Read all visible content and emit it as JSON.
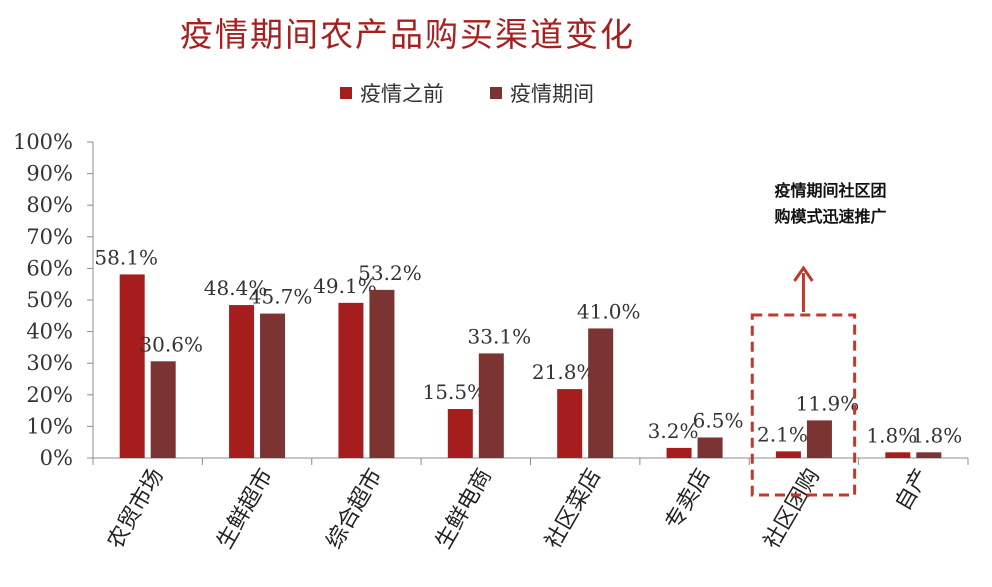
{
  "chart_data": {
    "type": "bar",
    "title": "疫情期间农产品购买渠道变化",
    "categories": [
      "农贸市场",
      "生鲜超市",
      "综合超市",
      "生鲜电商",
      "社区菜店",
      "专卖店",
      "社区团购",
      "自产"
    ],
    "series": [
      {
        "name": "疫情之前",
        "color": "#a61d1d",
        "values": [
          58.1,
          48.4,
          49.1,
          15.5,
          21.8,
          3.2,
          2.1,
          1.8
        ],
        "labels": [
          "58.1%",
          "48.4%",
          "49.1%",
          "15.5%",
          "21.8%",
          "3.2%",
          "2.1%",
          "1.8%"
        ]
      },
      {
        "name": "疫情期间",
        "color": "#7b3432",
        "values": [
          30.6,
          45.7,
          53.2,
          33.1,
          41.0,
          6.5,
          11.9,
          1.8
        ],
        "labels": [
          "30.6%",
          "45.7%",
          "53.2%",
          "33.1%",
          "41.0%",
          "6.5%",
          "11.9%",
          "1.8%"
        ]
      }
    ],
    "ylim": [
      0,
      100
    ],
    "yticks": [
      "0%",
      "10%",
      "20%",
      "30%",
      "40%",
      "50%",
      "60%",
      "70%",
      "80%",
      "90%",
      "100%"
    ],
    "legend_position": "top",
    "grid": false,
    "annotation": {
      "text_lines": [
        "疫情期间社区团",
        "购模式迅速推广"
      ],
      "highlight_category": "社区团购",
      "color": "#c0392b"
    }
  }
}
